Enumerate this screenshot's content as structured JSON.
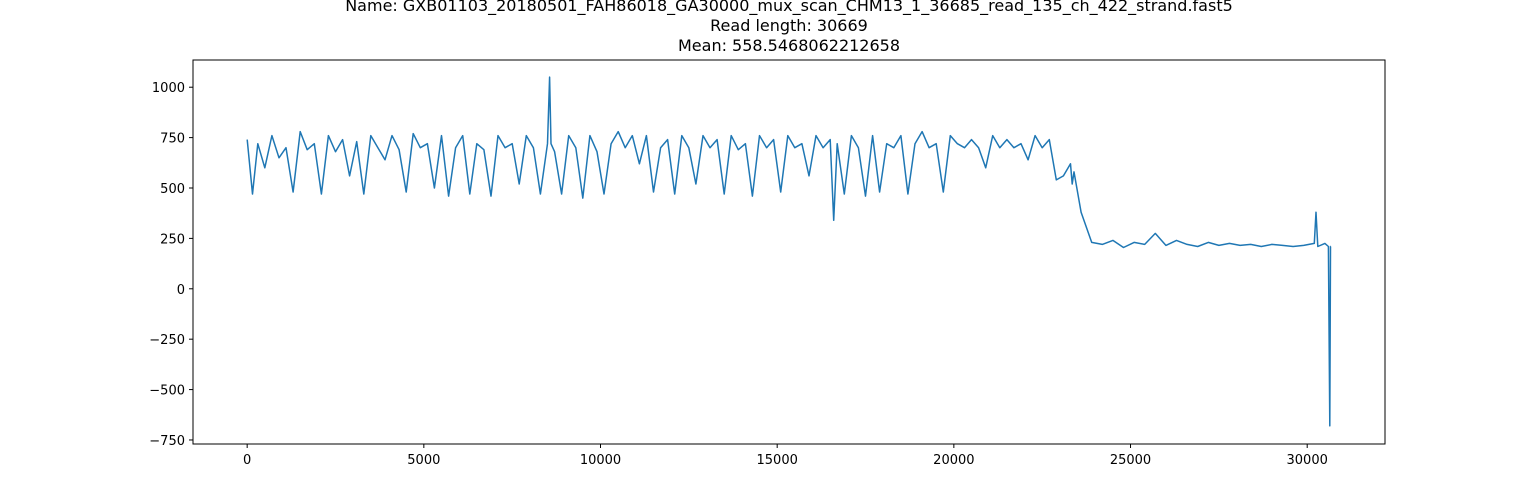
{
  "chart_data": {
    "type": "line",
    "title_lines": [
      "Name: GXB01103_20180501_FAH86018_GA30000_mux_scan_CHM13_1_36685_read_135_ch_422_strand.fast5",
      "Read length: 30669",
      "Mean: 558.5468062212658"
    ],
    "xlabel": "",
    "ylabel": "",
    "xlim": [
      -1533,
      32202
    ],
    "ylim": [
      -770,
      1135
    ],
    "x_ticks": [
      0,
      5000,
      10000,
      15000,
      20000,
      25000,
      30000
    ],
    "y_ticks": [
      -750,
      -500,
      -250,
      0,
      250,
      500,
      750,
      1000
    ],
    "x_tick_labels": [
      "0",
      "5000",
      "10000",
      "15000",
      "20000",
      "25000",
      "30000"
    ],
    "y_tick_labels": [
      "−750",
      "−500",
      "−250",
      "0",
      "250",
      "500",
      "750",
      "1000"
    ],
    "grid": false,
    "line_color": "#1f77b4",
    "series": [
      {
        "x": [
          0,
          150,
          300,
          500,
          700,
          900,
          1100,
          1300,
          1500,
          1700,
          1900,
          2100,
          2300,
          2500,
          2700,
          2900,
          3100,
          3300,
          3500,
          3700,
          3900,
          4100,
          4300,
          4500,
          4700,
          4900,
          5100,
          5300,
          5500,
          5700,
          5900,
          6100,
          6300,
          6500,
          6700,
          6900,
          7100,
          7300,
          7500,
          7700,
          7900,
          8100,
          8300,
          8500,
          8560,
          8600,
          8700,
          8900,
          9100,
          9300,
          9500,
          9700,
          9900,
          10100,
          10300,
          10500,
          10700,
          10900,
          11100,
          11300,
          11500,
          11700,
          11900,
          12100,
          12300,
          12500,
          12700,
          12900,
          13100,
          13300,
          13500,
          13700,
          13900,
          14100,
          14300,
          14500,
          14700,
          14900,
          15100,
          15300,
          15500,
          15700,
          15900,
          16100,
          16300,
          16500,
          16600,
          16700,
          16900,
          17100,
          17300,
          17500,
          17700,
          17900,
          18100,
          18300,
          18500,
          18700,
          18900,
          19100,
          19300,
          19500,
          19700,
          19900,
          20100,
          20300,
          20500,
          20700,
          20900,
          21100,
          21300,
          21500,
          21700,
          21900,
          22100,
          22300,
          22500,
          22700,
          22900,
          23100,
          23300,
          23350,
          23400,
          23600,
          23900,
          24200,
          24500,
          24800,
          25100,
          25400,
          25700,
          26000,
          26300,
          26600,
          26900,
          27200,
          27500,
          27800,
          28100,
          28400,
          28700,
          29000,
          29300,
          29600,
          29900,
          30200,
          30250,
          30300,
          30500,
          30600,
          30640,
          30660,
          30669
        ],
        "y": [
          740,
          470,
          720,
          600,
          760,
          650,
          700,
          480,
          780,
          690,
          720,
          470,
          760,
          680,
          740,
          560,
          730,
          470,
          760,
          700,
          640,
          760,
          690,
          480,
          770,
          700,
          720,
          500,
          760,
          460,
          700,
          760,
          470,
          720,
          690,
          460,
          760,
          700,
          720,
          520,
          760,
          700,
          470,
          720,
          1050,
          720,
          680,
          470,
          760,
          700,
          450,
          760,
          680,
          470,
          720,
          780,
          700,
          760,
          620,
          760,
          480,
          700,
          740,
          470,
          760,
          700,
          520,
          760,
          700,
          740,
          470,
          760,
          690,
          720,
          460,
          760,
          700,
          740,
          480,
          760,
          700,
          720,
          560,
          760,
          700,
          740,
          340,
          720,
          470,
          760,
          700,
          460,
          760,
          480,
          720,
          700,
          760,
          470,
          720,
          780,
          700,
          720,
          480,
          760,
          720,
          700,
          740,
          700,
          600,
          760,
          700,
          740,
          700,
          720,
          640,
          760,
          700,
          740,
          540,
          560,
          620,
          520,
          580,
          380,
          230,
          220,
          240,
          205,
          230,
          220,
          275,
          215,
          240,
          220,
          210,
          230,
          215,
          225,
          215,
          220,
          210,
          220,
          215,
          210,
          215,
          225,
          380,
          210,
          225,
          210,
          -680,
          210,
          210
        ]
      }
    ]
  }
}
